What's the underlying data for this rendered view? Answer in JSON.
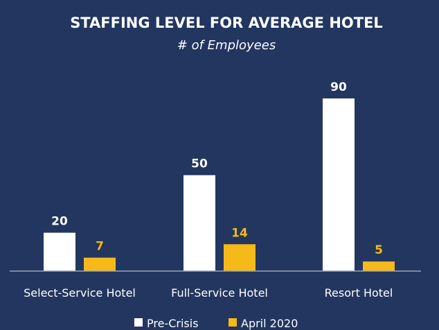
{
  "colors": {
    "background": "#22365f",
    "pre_crisis": "#ffffff",
    "april_2020": "#f5b91a",
    "axis": "#9aa3b5",
    "title": "#ffffff"
  },
  "chart_data": {
    "type": "bar",
    "title": "STAFFING LEVEL FOR AVERAGE HOTEL",
    "subtitle": "# of Employees",
    "categories": [
      "Select-Service Hotel",
      "Full-Service Hotel",
      "Resort Hotel"
    ],
    "series": [
      {
        "name": "Pre-Crisis",
        "values": [
          20,
          50,
          90
        ]
      },
      {
        "name": "April 2020",
        "values": [
          7,
          14,
          5
        ]
      }
    ],
    "ylim": [
      0,
      90
    ],
    "grid": false,
    "legend_position": "bottom-center",
    "data_labels": true
  }
}
